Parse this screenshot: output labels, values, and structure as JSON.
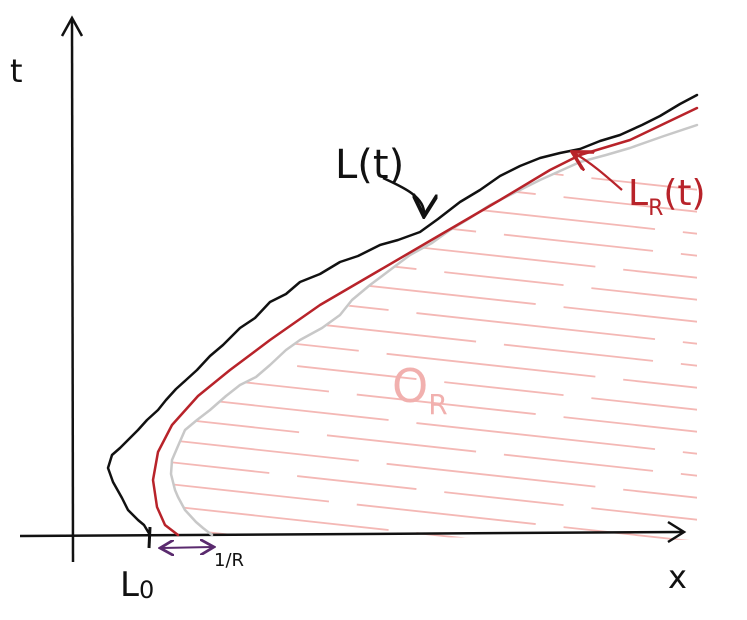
{
  "axes": {
    "t": "t",
    "x": "x"
  },
  "labels": {
    "boundary": "L(t)",
    "regularized": {
      "base": "L",
      "sub": "R",
      "suffix": "(t)"
    },
    "region": {
      "base": "O",
      "sub": "R"
    },
    "start": {
      "base": "L",
      "sub": "0"
    },
    "offset": "1/R"
  }
}
